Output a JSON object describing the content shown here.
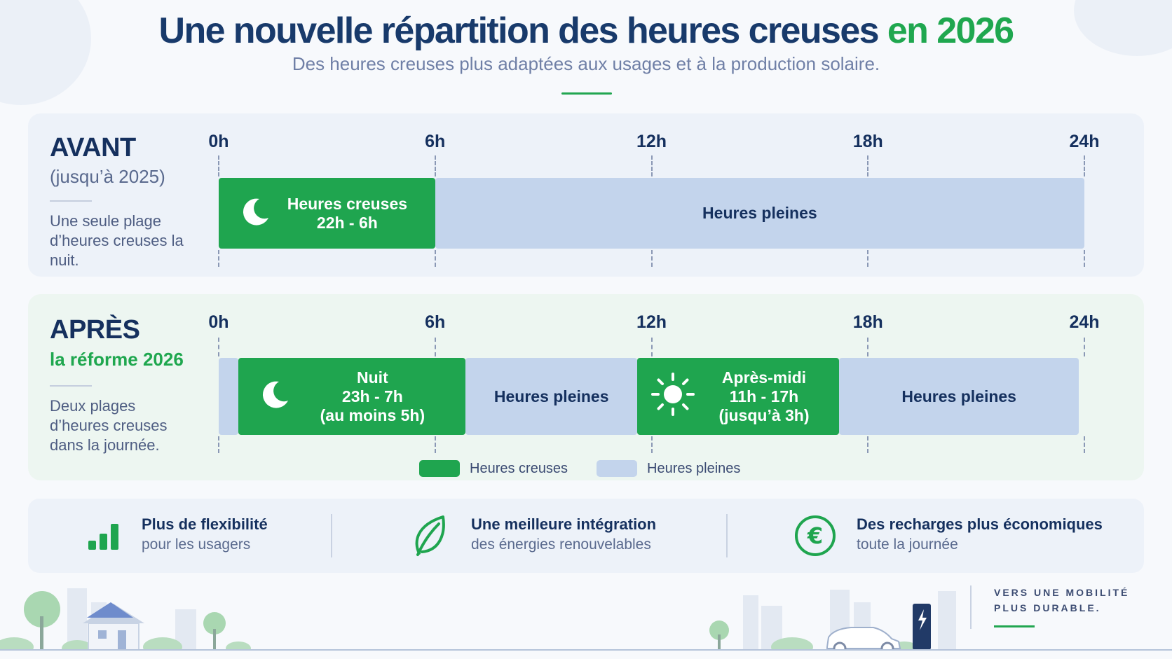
{
  "header": {
    "title_main": "Une nouvelle répartition des heures creuses",
    "title_accent": "en 2026",
    "subtitle": "Des heures creuses plus adaptées aux usages et à la production solaire."
  },
  "colors": {
    "offpeak": "#1fa54f",
    "peak": "#c3d4ec",
    "navy": "#15305e",
    "accent_green": "#1fa74f"
  },
  "ticks": [
    "0h",
    "6h",
    "12h",
    "18h",
    "24h"
  ],
  "before": {
    "title": "AVANT",
    "subtitle": "(jusqu’à 2025)",
    "description": "Une seule plage d’heures creuses la nuit.",
    "segments": [
      {
        "kind": "offpeak",
        "start": 0,
        "end": 6,
        "icon": "moon-icon",
        "lines": [
          "Heures creuses",
          "22h - 6h"
        ]
      },
      {
        "kind": "peak",
        "start": 6,
        "end": 24,
        "lines": [
          "Heures pleines"
        ]
      }
    ]
  },
  "after": {
    "title": "APRÈS",
    "subtitle": "la réforme 2026",
    "description": "Deux plages d’heures creuses dans la journée.",
    "segments": [
      {
        "kind": "peak",
        "start": 0,
        "end": 0.55,
        "lines": []
      },
      {
        "kind": "offpeak",
        "start": 0.55,
        "end": 6.85,
        "icon": "moon-icon",
        "lines": [
          "Nuit",
          "23h - 7h",
          "(au moins 5h)"
        ]
      },
      {
        "kind": "peak",
        "start": 6.85,
        "end": 11.6,
        "lines": [
          "Heures pleines"
        ]
      },
      {
        "kind": "offpeak",
        "start": 11.6,
        "end": 17.2,
        "icon": "sun-icon",
        "lines": [
          "Après-midi",
          "11h - 17h",
          "(jusqu’à 3h)"
        ]
      },
      {
        "kind": "peak",
        "start": 17.2,
        "end": 23.85,
        "lines": [
          "Heures pleines"
        ]
      }
    ]
  },
  "legend": {
    "offpeak_label": "Heures creuses",
    "peak_label": "Heures pleines"
  },
  "benefits": [
    {
      "icon": "bar-chart-icon",
      "title": "Plus de flexibilité",
      "subtitle": "pour les usagers"
    },
    {
      "icon": "leaf-icon",
      "title": "Une meilleure intégration",
      "subtitle": "des énergies renouvelables"
    },
    {
      "icon": "euro-icon",
      "title": "Des recharges plus économiques",
      "subtitle": "toute la journée"
    }
  ],
  "footer": {
    "mobility_line1": "VERS UNE MOBILITÉ",
    "mobility_line2": "PLUS DURABLE."
  }
}
